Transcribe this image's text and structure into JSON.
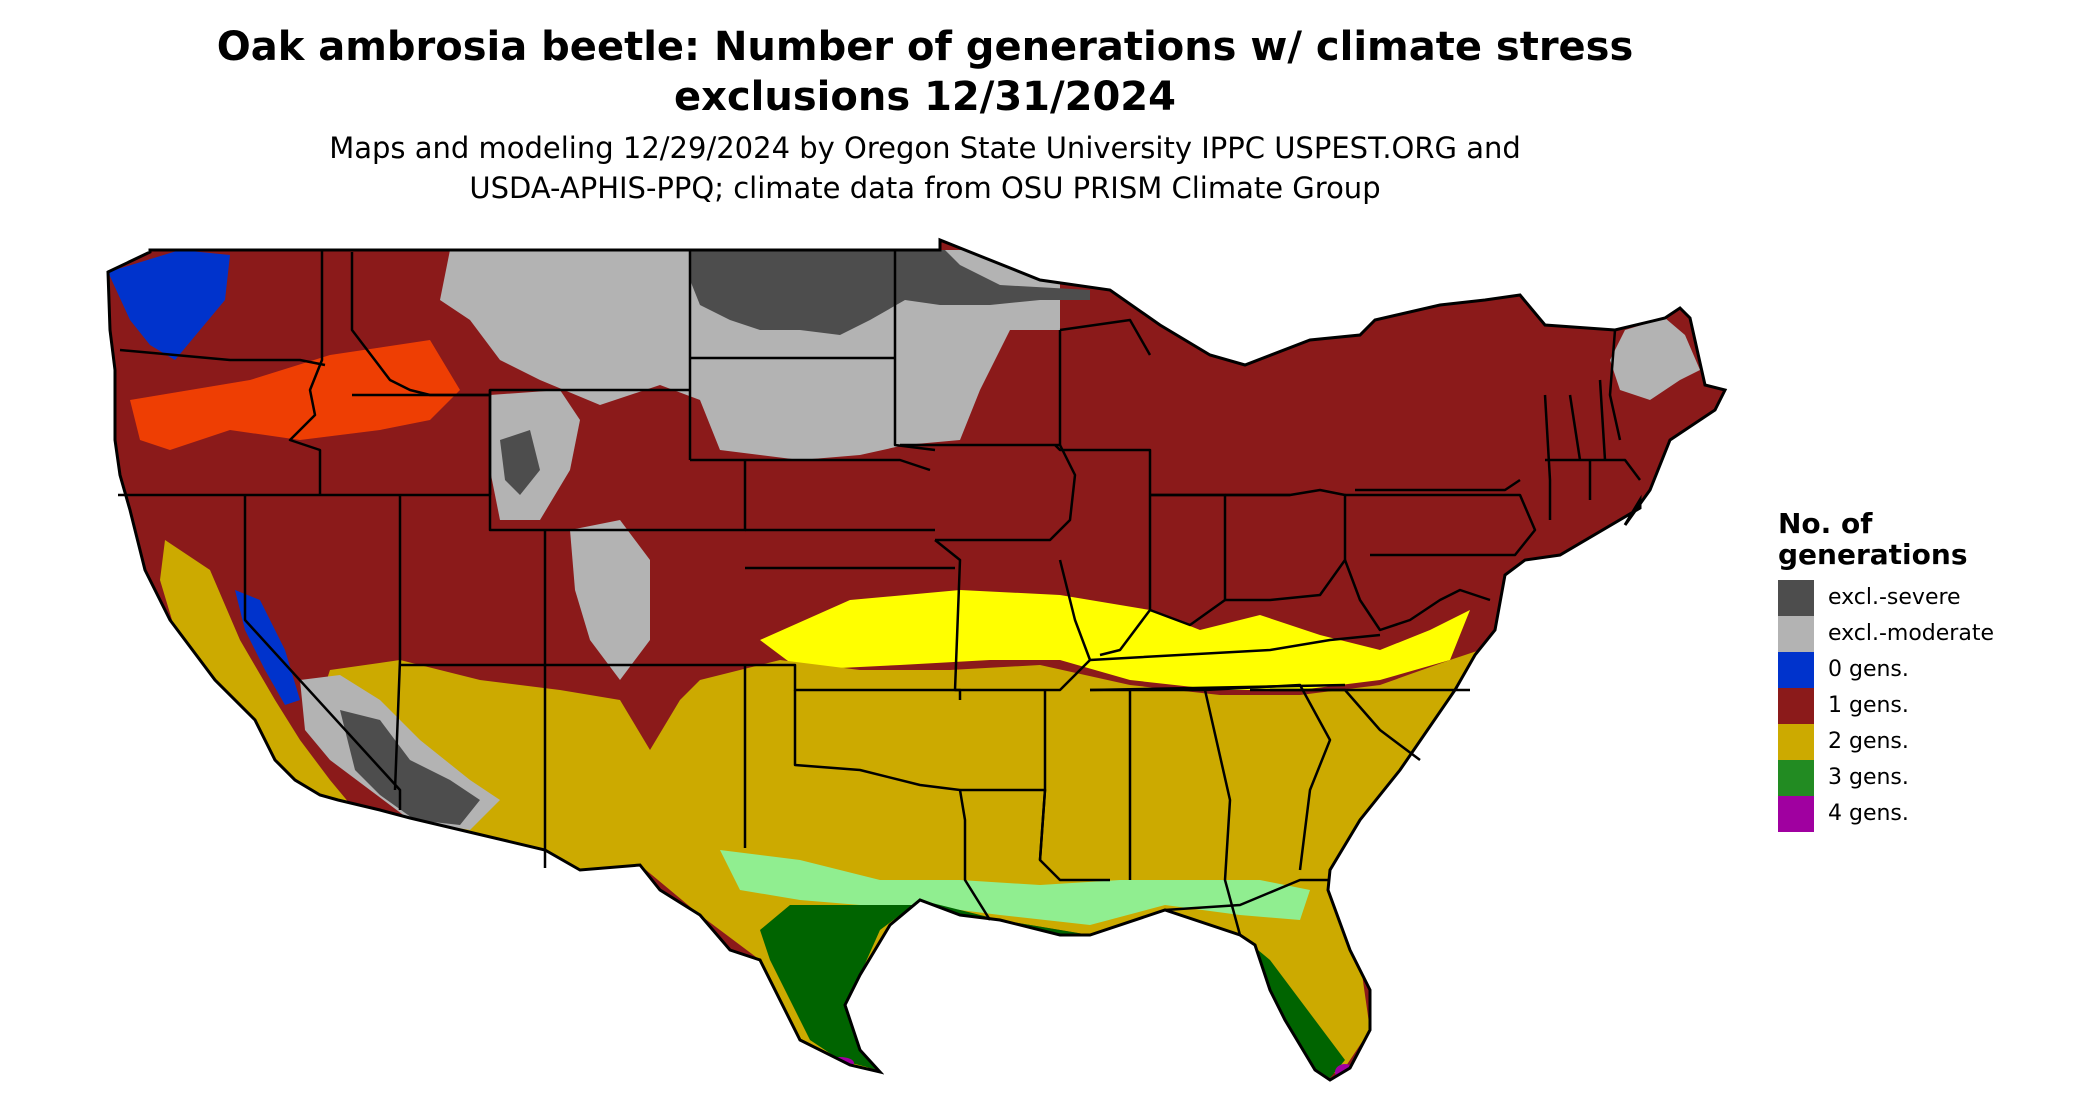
{
  "title": {
    "line1": "Oak ambrosia beetle: Number of generations w/ climate stress",
    "line2": "exclusions 12/31/2024"
  },
  "subtitle": {
    "line1": "Maps and modeling 12/29/2024 by Oregon State University IPPC USPEST.ORG and",
    "line2": "USDA-APHIS-PPQ; climate data from OSU PRISM Climate Group"
  },
  "legend": {
    "title_line1": "No. of",
    "title_line2": "generations",
    "items": [
      {
        "label": "excl.-severe",
        "color": "#4d4d4d"
      },
      {
        "label": "excl.-moderate",
        "color": "#b3b3b3"
      },
      {
        "label": "0 gens.",
        "color": "#0033cc"
      },
      {
        "label": "1 gens.",
        "color": "#8b1a1a"
      },
      {
        "label": "2 gens.",
        "color": "#ccaa00"
      },
      {
        "label": "3 gens.",
        "color": "#228b22"
      },
      {
        "label": "4 gens.",
        "color": "#a000a0"
      }
    ]
  },
  "map": {
    "region": "contiguous-united-states",
    "zone_colors": {
      "excl_severe": "#4d4d4d",
      "excl_moderate": "#b3b3b3",
      "gens_0": "#0033cc",
      "gens_1": "#8b1a1a",
      "gens_1_high": "#ff4500",
      "gens_2": "#ccaa00",
      "gens_2_high": "#ffff00",
      "gens_3": "#006400",
      "gens_3_low": "#90ee90",
      "gens_4": "#a000a0",
      "border": "#000000"
    }
  }
}
